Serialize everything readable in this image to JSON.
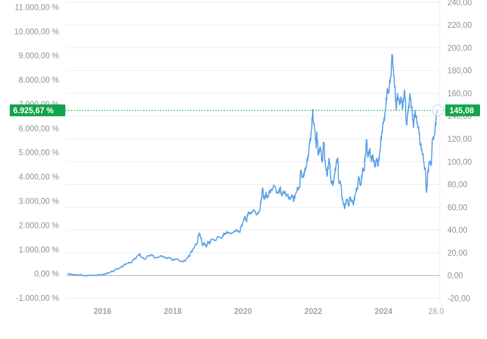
{
  "chart_data": {
    "type": "line",
    "title": "",
    "colors": {
      "line": "#5aa0e6",
      "badge": "#12a44a",
      "grid": "#eceef1",
      "zero_line": "#a9adb3"
    },
    "x_range": [
      2014.96,
      2025.6
    ],
    "y_left_range": [
      -1200,
      11300
    ],
    "y_right_range": [
      -24,
      242
    ],
    "y_left_ticks": [
      "-1.000,00 %",
      "0,00 %",
      "1.000,00 %",
      "2.000,00 %",
      "3.000,00 %",
      "4.000,00 %",
      "5.000,00 %",
      "6.000,00 %",
      "7.000,00 %",
      "8.000,00 %",
      "9.000,00 %",
      "10.000,00 %",
      "11.000,00 %"
    ],
    "y_left_values": [
      -1000,
      0,
      1000,
      2000,
      3000,
      4000,
      5000,
      6000,
      7000,
      8000,
      9000,
      10000,
      11000
    ],
    "y_right_ticks": [
      "-20,00",
      "0,00",
      "20,00",
      "40,00",
      "60,00",
      "80,00",
      "100,00",
      "120,00",
      "140,00",
      "160,00",
      "180,00",
      "200,00",
      "220,00",
      "240,00"
    ],
    "y_right_values": [
      -20,
      0,
      20,
      40,
      60,
      80,
      100,
      120,
      140,
      160,
      180,
      200,
      220,
      240
    ],
    "x_ticks": [
      "2016",
      "2018",
      "2020",
      "2022",
      "2024"
    ],
    "x_tick_values": [
      2016,
      2018,
      2020,
      2022,
      2024
    ],
    "x_last_label": "28.0",
    "x_last_value": 2025.55,
    "current_percent_label": "6.925,67 %",
    "current_price_label": "145,08",
    "current_percent": 6925.67,
    "current_price": 145.08,
    "series": [
      {
        "points": [
          [
            2015.0,
            2
          ],
          [
            2015.1,
            1
          ],
          [
            2015.2,
            0.5
          ],
          [
            2015.3,
            0.6
          ],
          [
            2015.4,
            0.3
          ],
          [
            2015.5,
            0
          ],
          [
            2015.6,
            0.2
          ],
          [
            2015.7,
            0
          ],
          [
            2015.8,
            0.3
          ],
          [
            2015.9,
            0.5
          ],
          [
            2016.0,
            1
          ],
          [
            2016.1,
            1.5
          ],
          [
            2016.2,
            2.5
          ],
          [
            2016.3,
            4
          ],
          [
            2016.4,
            5.5
          ],
          [
            2016.5,
            7
          ],
          [
            2016.6,
            9
          ],
          [
            2016.7,
            10.5
          ],
          [
            2016.8,
            11.5
          ],
          [
            2016.9,
            14
          ],
          [
            2017.0,
            17.5
          ],
          [
            2017.05,
            19
          ],
          [
            2017.1,
            16
          ],
          [
            2017.2,
            14.5
          ],
          [
            2017.3,
            17
          ],
          [
            2017.4,
            18.5
          ],
          [
            2017.5,
            15.5
          ],
          [
            2017.6,
            16
          ],
          [
            2017.7,
            17.5
          ],
          [
            2017.8,
            15
          ],
          [
            2017.9,
            16
          ],
          [
            2018.0,
            13.5
          ],
          [
            2018.1,
            14.5
          ],
          [
            2018.2,
            13
          ],
          [
            2018.3,
            12
          ],
          [
            2018.4,
            15
          ],
          [
            2018.5,
            19
          ],
          [
            2018.6,
            24
          ],
          [
            2018.7,
            29
          ],
          [
            2018.72,
            34
          ],
          [
            2018.76,
            37.5
          ],
          [
            2018.8,
            33
          ],
          [
            2018.85,
            26
          ],
          [
            2018.9,
            29
          ],
          [
            2018.95,
            25
          ],
          [
            2019.0,
            30
          ],
          [
            2019.05,
            28
          ],
          [
            2019.1,
            32
          ],
          [
            2019.2,
            31
          ],
          [
            2019.3,
            34
          ],
          [
            2019.4,
            33
          ],
          [
            2019.45,
            37
          ],
          [
            2019.5,
            36
          ],
          [
            2019.55,
            38.5
          ],
          [
            2019.6,
            37
          ],
          [
            2019.7,
            37.5
          ],
          [
            2019.8,
            40
          ],
          [
            2019.85,
            39
          ],
          [
            2019.9,
            38
          ],
          [
            2019.95,
            43
          ],
          [
            2020.0,
            47
          ],
          [
            2020.05,
            52
          ],
          [
            2020.1,
            47
          ],
          [
            2020.15,
            56
          ],
          [
            2020.2,
            54
          ],
          [
            2020.3,
            58
          ],
          [
            2020.4,
            53.5
          ],
          [
            2020.48,
            57
          ],
          [
            2020.52,
            68
          ],
          [
            2020.56,
            76
          ],
          [
            2020.6,
            67
          ],
          [
            2020.65,
            72
          ],
          [
            2020.7,
            68
          ],
          [
            2020.8,
            76
          ],
          [
            2020.9,
            78
          ],
          [
            2021.0,
            72
          ],
          [
            2021.05,
            77
          ],
          [
            2021.1,
            70
          ],
          [
            2021.2,
            74
          ],
          [
            2021.3,
            67
          ],
          [
            2021.4,
            71
          ],
          [
            2021.45,
            66
          ],
          [
            2021.5,
            72
          ],
          [
            2021.6,
            78
          ],
          [
            2021.65,
            92
          ],
          [
            2021.7,
            86
          ],
          [
            2021.75,
            91
          ],
          [
            2021.8,
            95
          ],
          [
            2021.85,
            105
          ],
          [
            2021.9,
            116
          ],
          [
            2021.95,
            128
          ],
          [
            2021.98,
            145
          ],
          [
            2022.0,
            135
          ],
          [
            2022.05,
            127
          ],
          [
            2022.08,
            112
          ],
          [
            2022.1,
            126
          ],
          [
            2022.15,
            106
          ],
          [
            2022.2,
            113
          ],
          [
            2022.25,
            100
          ],
          [
            2022.3,
            117
          ],
          [
            2022.35,
            96
          ],
          [
            2022.4,
            88
          ],
          [
            2022.45,
            103
          ],
          [
            2022.5,
            85
          ],
          [
            2022.55,
            79
          ],
          [
            2022.6,
            88
          ],
          [
            2022.65,
            98
          ],
          [
            2022.7,
            103
          ],
          [
            2022.72,
            84
          ],
          [
            2022.78,
            80
          ],
          [
            2022.85,
            64
          ],
          [
            2022.9,
            60
          ],
          [
            2022.95,
            67
          ],
          [
            2023.0,
            62
          ],
          [
            2023.05,
            68
          ],
          [
            2023.1,
            66
          ],
          [
            2023.15,
            63
          ],
          [
            2023.2,
            72
          ],
          [
            2023.25,
            77
          ],
          [
            2023.3,
            86
          ],
          [
            2023.35,
            79
          ],
          [
            2023.4,
            93
          ],
          [
            2023.45,
            92
          ],
          [
            2023.48,
            106
          ],
          [
            2023.52,
            119
          ],
          [
            2023.55,
            104
          ],
          [
            2023.6,
            111
          ],
          [
            2023.65,
            100
          ],
          [
            2023.7,
            106
          ],
          [
            2023.75,
            95
          ],
          [
            2023.8,
            103
          ],
          [
            2023.85,
            97
          ],
          [
            2023.9,
            109
          ],
          [
            2023.95,
            126
          ],
          [
            2024.0,
            134
          ],
          [
            2024.05,
            145
          ],
          [
            2024.1,
            163
          ],
          [
            2024.15,
            160
          ],
          [
            2024.2,
            175
          ],
          [
            2024.25,
            194
          ],
          [
            2024.28,
            180
          ],
          [
            2024.32,
            166
          ],
          [
            2024.36,
            145
          ],
          [
            2024.4,
            160
          ],
          [
            2024.45,
            150
          ],
          [
            2024.5,
            157
          ],
          [
            2024.55,
            147
          ],
          [
            2024.6,
            163
          ],
          [
            2024.65,
            133
          ],
          [
            2024.7,
            143
          ],
          [
            2024.75,
            160
          ],
          [
            2024.8,
            148
          ],
          [
            2024.85,
            130
          ],
          [
            2024.9,
            145
          ],
          [
            2024.95,
            134
          ],
          [
            2025.0,
            130
          ],
          [
            2025.05,
            115
          ],
          [
            2025.1,
            108
          ],
          [
            2025.15,
            100
          ],
          [
            2025.2,
            88
          ],
          [
            2025.22,
            73
          ],
          [
            2025.25,
            85
          ],
          [
            2025.3,
            100
          ],
          [
            2025.35,
            97
          ],
          [
            2025.4,
            120
          ],
          [
            2025.45,
            123
          ],
          [
            2025.5,
            141
          ],
          [
            2025.55,
            145.08
          ]
        ]
      }
    ]
  }
}
